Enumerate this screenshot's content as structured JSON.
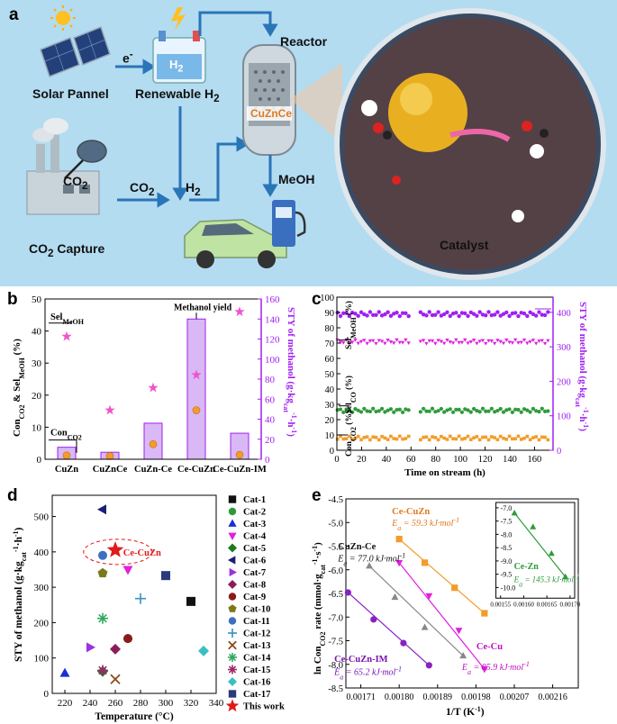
{
  "panel_a": {
    "label": "a",
    "solar": "Solar Pannel",
    "renewable": "Renewable H",
    "renewable_sub": "2",
    "electron": "e",
    "electron_sup": "-",
    "h2_tank": "H",
    "h2_tank_sub": "2",
    "co2_capture": "CO",
    "co2_capture_sub": "2",
    "co2_capture_tail": " Capture",
    "co2_net": "CO",
    "co2_net_sub": "2",
    "co2_arrow": "CO",
    "co2_arrow_sub": "2",
    "h2_arrow": "H",
    "h2_arrow_sub": "2",
    "reactor": "Reactor",
    "cuznce": "CuZnCe",
    "meoh": "MeOH",
    "catalyst": "Catalyst"
  },
  "colors": {
    "purple": "#a020f0",
    "bar_fill": "#d9b8f5",
    "orange": "#f39c2a",
    "green": "#2e9b3a",
    "magenta": "#e020e0",
    "pink_star": "#ee55cc"
  },
  "chart_data": [
    {
      "panel": "b",
      "type": "bar",
      "categories": [
        "CuZn",
        "CuZnCe",
        "CuZn-Ce",
        "Ce-CuZn",
        "Ce-CuZn-IM"
      ],
      "ylabel_left": "Con",
      "ylabel_left_parts": [
        "Con",
        "CO2",
        " & Sel",
        "MeOH",
        " (%)"
      ],
      "ylabel_right_parts": [
        "STY of methanol (g·kg",
        "cat",
        "-1",
        "·h",
        "-1",
        ")"
      ],
      "ylim_left": [
        0,
        50
      ],
      "ylim_right": [
        0,
        160
      ],
      "yticks_left": [
        "0",
        "10",
        "20",
        "30",
        "40",
        "50"
      ],
      "yticks_right": [
        "0",
        "20",
        "40",
        "60",
        "80",
        "100",
        "120",
        "140",
        "160"
      ],
      "series": [
        {
          "name": "Methanol yield",
          "axis": "right",
          "values": [
            12,
            7,
            36,
            140,
            26
          ]
        },
        {
          "axis": "left",
          "marker": "circle",
          "values": [
            1.2,
            1.0,
            4.7,
            15.3,
            1.4
          ]
        },
        {
          "axis": "left",
          "marker": "star",
          "values": [
            38.3,
            15.3,
            22.3,
            26.3,
            46.0
          ]
        }
      ],
      "annotations": {
        "methanol_yield": "Methanol yield",
        "sel_meoh": [
          "Sel",
          "MeOH"
        ],
        "con_co2": [
          "Con",
          "CO2"
        ]
      }
    },
    {
      "panel": "c",
      "type": "scatter",
      "xlabel": "Time on stream (h)",
      "xlim": [
        0,
        175
      ],
      "xticks": [
        "0",
        "20",
        "40",
        "60",
        "80",
        "100",
        "120",
        "140",
        "160"
      ],
      "ylim_left": [
        0,
        100
      ],
      "yticks_left": [
        "0",
        "10",
        "20",
        "30",
        "40",
        "50",
        "60",
        "70",
        "80",
        "90",
        "100"
      ],
      "ylim_right": [
        0,
        444
      ],
      "yticks_right": [
        "0",
        "100",
        "200",
        "300",
        "400"
      ],
      "ylabel_right_parts": [
        "STY of methanol (g·kg",
        "cat",
        "-1",
        "·h",
        "-1",
        ")"
      ],
      "ylabels_left": [
        [
          "Sel",
          "MeOH",
          " (%)"
        ],
        [
          "Sel",
          "CO",
          " (%)"
        ],
        [
          "Con",
          "CO2",
          " (%)"
        ]
      ],
      "gap": [
        60,
        66
      ],
      "series": [
        {
          "axis": "right",
          "color": "#a020f0",
          "level": 395
        },
        {
          "axis": "left",
          "color": "#e020e0",
          "level": 71
        },
        {
          "axis": "left",
          "color": "#2e9b3a",
          "level": 26
        },
        {
          "axis": "left",
          "color": "#f39c2a",
          "level": 8
        }
      ]
    },
    {
      "panel": "d",
      "type": "scatter",
      "xlabel": "Temperature (°C)",
      "ylabel_parts": [
        "STY of methanol (g·kg",
        "cat",
        "-1",
        "·h",
        "-1",
        ")"
      ],
      "xlim": [
        210,
        340
      ],
      "ylim": [
        0,
        560
      ],
      "xticks": [
        "220",
        "240",
        "260",
        "280",
        "300",
        "320",
        "340"
      ],
      "yticks": [
        "0",
        "100",
        "200",
        "300",
        "400",
        "500"
      ],
      "annotation": "Ce-CuZn",
      "points": [
        {
          "name": "Cat-1",
          "x": 320,
          "y": 260,
          "marker": "square",
          "color": "#111111"
        },
        {
          "name": "Cat-2",
          "x": 270,
          "y": 155,
          "marker": "circle",
          "color": "#2e9b3a"
        },
        {
          "name": "Cat-3",
          "x": 220,
          "y": 57,
          "marker": "triangle-up",
          "color": "#1a2fd8"
        },
        {
          "name": "Cat-4",
          "x": 270,
          "y": 350,
          "marker": "triangle-down",
          "color": "#e020e0"
        },
        {
          "name": "Cat-5",
          "x": 250,
          "y": 62,
          "marker": "diamond",
          "color": "#1f7a1f"
        },
        {
          "name": "Cat-6",
          "x": 250,
          "y": 520,
          "marker": "triangle-left",
          "color": "#1b1f7a"
        },
        {
          "name": "Cat-7",
          "x": 240,
          "y": 130,
          "marker": "triangle-right",
          "color": "#9b30e0"
        },
        {
          "name": "Cat-8",
          "x": 260,
          "y": 125,
          "marker": "diamond",
          "color": "#8b1e5a"
        },
        {
          "name": "Cat-9",
          "x": 270,
          "y": 155,
          "marker": "circle",
          "color": "#8b1a1a"
        },
        {
          "name": "Cat-10",
          "x": 250,
          "y": 340,
          "marker": "pentagon",
          "color": "#7a7a1a"
        },
        {
          "name": "Cat-11",
          "x": 250,
          "y": 390,
          "marker": "circle",
          "color": "#3b6fc2"
        },
        {
          "name": "Cat-12",
          "x": 280,
          "y": 268,
          "marker": "plus",
          "color": "#3a8fc2"
        },
        {
          "name": "Cat-13",
          "x": 260,
          "y": 40,
          "marker": "x",
          "color": "#8b4a1a"
        },
        {
          "name": "Cat-14",
          "x": 250,
          "y": 212,
          "marker": "asterisk",
          "color": "#2eaa60"
        },
        {
          "name": "Cat-15",
          "x": 250,
          "y": 65,
          "marker": "asterisk",
          "color": "#9b2a6a"
        },
        {
          "name": "Cat-16",
          "x": 330,
          "y": 120,
          "marker": "diamond",
          "color": "#3ac0c0"
        },
        {
          "name": "Cat-17",
          "x": 300,
          "y": 333,
          "marker": "square",
          "color": "#2a3a7a"
        },
        {
          "name": "This work",
          "x": 260,
          "y": 405,
          "marker": "star",
          "color": "#e01a1a"
        }
      ]
    },
    {
      "panel": "e",
      "type": "scatter",
      "xlabel": "1/T (K",
      "xlabel_sup": "-1",
      "xlabel_tail": ")",
      "ylabel_parts": [
        "ln Con",
        "CO2",
        " rate (mmol·g",
        "cat",
        "-1",
        "·s",
        "-1",
        ")"
      ],
      "xlim": [
        0.001675,
        0.00222
      ],
      "ylim": [
        -8.5,
        -4.5
      ],
      "xticks": [
        "0.00171",
        "0.00180",
        "0.00189",
        "0.00198",
        "0.00207",
        "0.00216"
      ],
      "yticks": [
        "-4.5",
        "-5.0",
        "-5.5",
        "-6.0",
        "-6.5",
        "-7.0",
        "-7.5",
        "-8.0",
        "-8.5"
      ],
      "series": [
        {
          "name": "Ce-CuZn",
          "color": "#f39c2a",
          "marker": "square",
          "ea_value": "59.3",
          "x": [
            0.0018,
            0.00186,
            0.00193,
            0.002
          ],
          "y": [
            -5.35,
            -5.85,
            -6.38,
            -6.92
          ]
        },
        {
          "name": "CuZn-Ce",
          "color": "#888888",
          "marker": "triangle-up",
          "ea_value": "77.0",
          "x": [
            0.00173,
            0.00179,
            0.00186,
            0.00195
          ],
          "y": [
            -5.92,
            -6.58,
            -7.22,
            -7.82
          ]
        },
        {
          "name": "Ce-Cu",
          "color": "#e020e0",
          "marker": "triangle-down",
          "ea_value": "85.9",
          "x": [
            0.0018,
            0.00187,
            0.00194,
            0.002
          ],
          "y": [
            -5.85,
            -6.55,
            -7.28,
            -8.1
          ]
        },
        {
          "name": "Ce-CuZn-IM",
          "color": "#8a20c0",
          "marker": "circle",
          "ea_value": "65.2",
          "x": [
            0.00168,
            0.00174,
            0.00181,
            0.00187
          ],
          "y": [
            -6.48,
            -7.05,
            -7.55,
            -8.02
          ]
        }
      ],
      "ea_prefix": "E",
      "ea_sub": "a",
      "ea_unit": " kJ·mol",
      "ea_unit_sup": "-1",
      "inset": {
        "name": "Ce-Zn",
        "ea_value": "145.3",
        "color": "#2e9b3a",
        "xlim": [
          0.00154,
          0.00171
        ],
        "ylim": [
          -10.4,
          -6.8
        ],
        "xticks": [
          "0.00155",
          "0.00160",
          "0.00165",
          "0.00170"
        ],
        "yticks": [
          "-7.0",
          "-7.5",
          "-8.0",
          "-8.5",
          "-9.0",
          "-9.5",
          "-10.0"
        ],
        "x": [
          0.00158,
          0.00162,
          0.00166,
          0.00169
        ],
        "y": [
          -7.2,
          -7.72,
          -8.72,
          -9.6
        ]
      }
    }
  ]
}
